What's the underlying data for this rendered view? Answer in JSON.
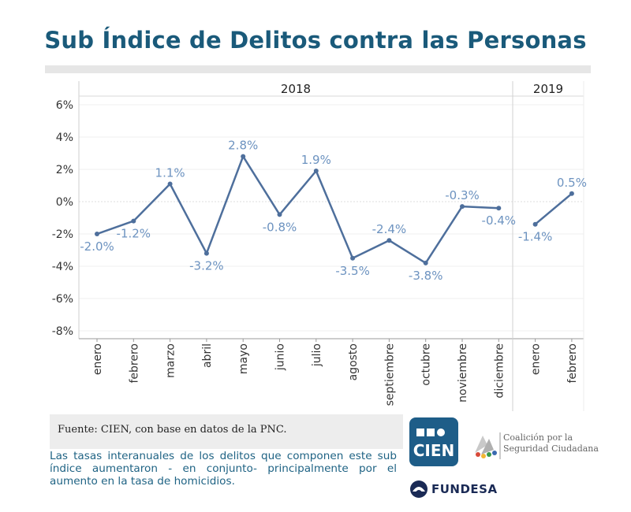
{
  "title": "Sub Índice de Delitos contra las Personas",
  "chart_data": {
    "type": "line",
    "title": "Sub Índice de Delitos contra las Personas",
    "groups": [
      {
        "label": "2018",
        "categories": [
          "enero",
          "febrero",
          "marzo",
          "abril",
          "mayo",
          "junio",
          "julio",
          "agosto",
          "septiembre",
          "octubre",
          "noviembre",
          "diciembre"
        ]
      },
      {
        "label": "2019",
        "categories": [
          "enero",
          "febrero"
        ]
      }
    ],
    "series": [
      {
        "name": "2018",
        "values": [
          -2.0,
          -1.2,
          1.1,
          -3.2,
          2.8,
          -0.8,
          1.9,
          -3.5,
          -2.4,
          -3.8,
          -0.3,
          -0.4
        ]
      },
      {
        "name": "2019",
        "values": [
          -1.4,
          0.5
        ]
      }
    ],
    "value_labels": {
      "2018": [
        "-2.0%",
        "-1.2%",
        "1.1%",
        "-3.2%",
        "2.8%",
        "-0.8%",
        "1.9%",
        "-3.5%",
        "-2.4%",
        "-3.8%",
        "-0.3%",
        "-0.4%"
      ],
      "2019": [
        "-1.4%",
        "0.5%"
      ]
    },
    "label_positions": {
      "2018": [
        "below",
        "below",
        "above",
        "below",
        "above",
        "below",
        "above",
        "below",
        "above",
        "below",
        "above",
        "below"
      ],
      "2019": [
        "below",
        "above"
      ]
    },
    "yticks": [
      6,
      4,
      2,
      0,
      -2,
      -4,
      -6,
      -8
    ],
    "ytick_labels": [
      "6%",
      "4%",
      "2%",
      "0%",
      "-2%",
      "-4%",
      "-6%",
      "-8%"
    ],
    "ylim": [
      -8,
      6
    ],
    "xlabel": "",
    "ylabel": "",
    "line_color": "#4e6f9c",
    "label_color": "#6d93c0"
  },
  "source": "Fuente: CIEN, con base en datos de la PNC.",
  "note": "Las tasas interanuales de los delitos que componen este sub índice aumentaron - en conjunto- principalmente por el aumento en la tasa de homicidios.",
  "logos": {
    "cien": "CIEN",
    "coalicion_line1": "Coalición por la",
    "coalicion_line2": "Seguridad Ciudadana",
    "fundesa": "FUNDESA"
  },
  "colors": {
    "title": "#1a5a7a",
    "note": "#1f6384",
    "cien_bg": "#1e5d88"
  }
}
